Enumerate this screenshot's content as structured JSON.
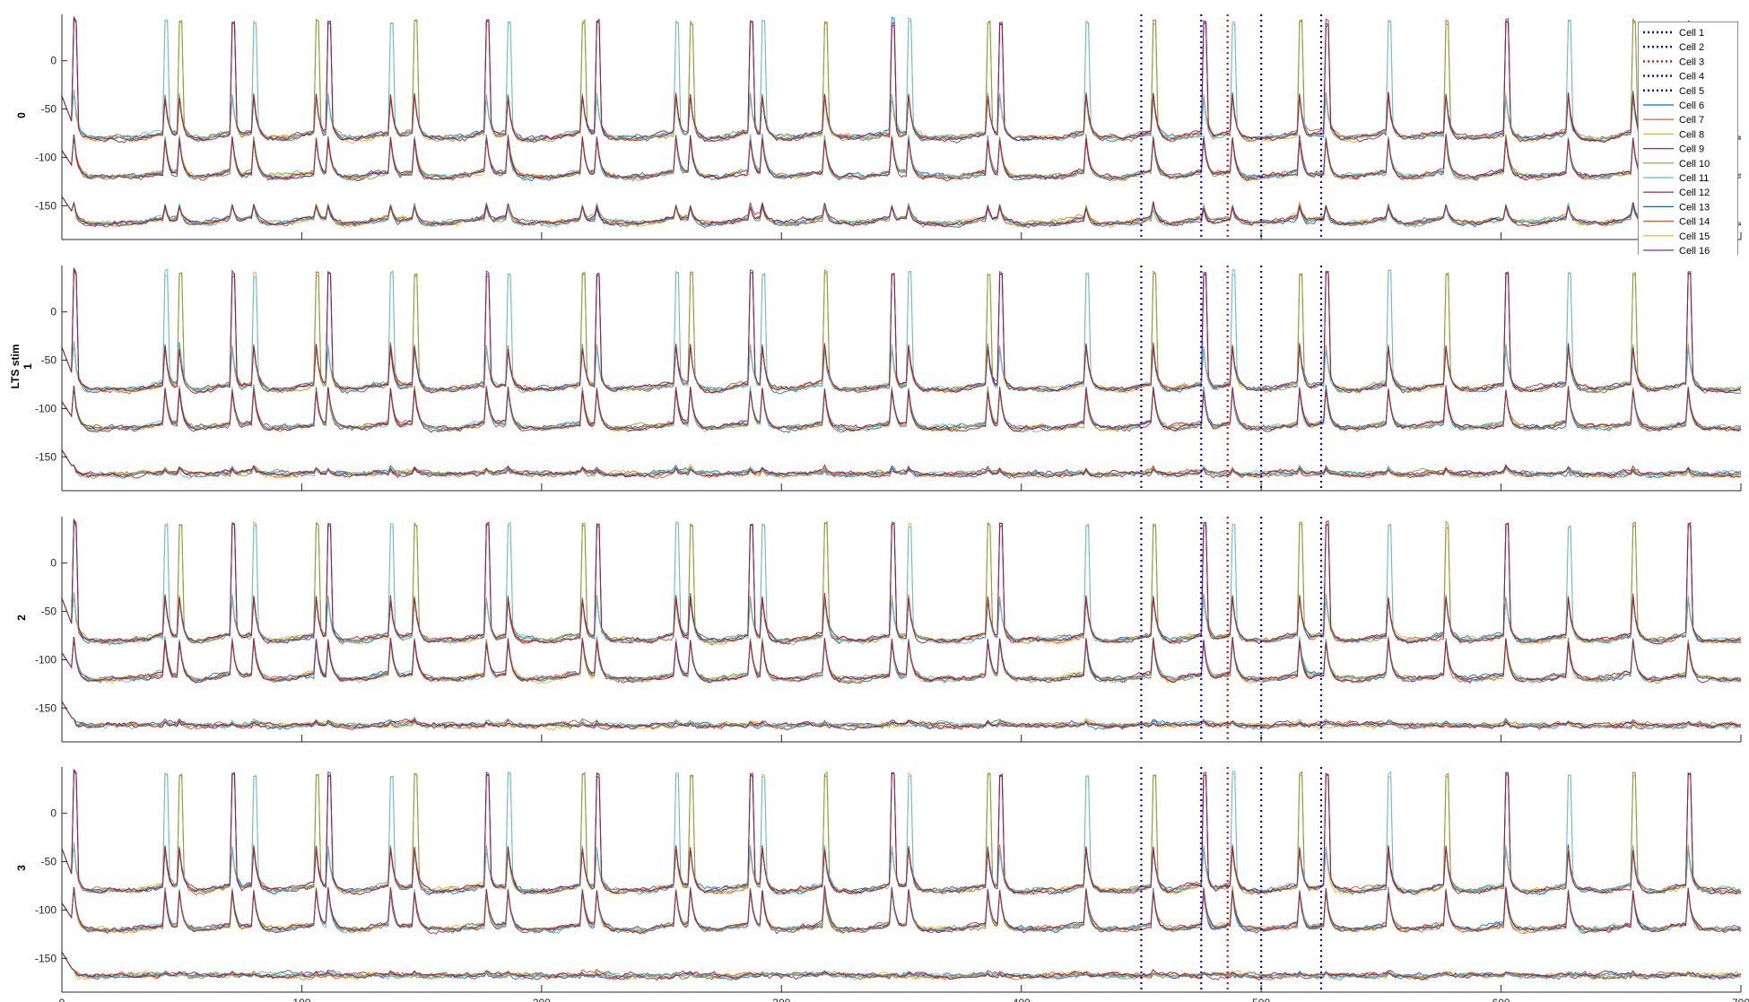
{
  "chart_data": {
    "type": "line",
    "description_axes": "4 stacked panels, shared x axis (time), membrane potential traces offset per population",
    "xlim": [
      0,
      700
    ],
    "ylim": [
      -185,
      48
    ],
    "xticks": [
      0,
      100,
      200,
      300,
      400,
      500,
      600,
      700
    ],
    "yticks": [
      -150,
      -100,
      -50,
      0
    ],
    "panels": [
      {
        "label": "0"
      },
      {
        "label": "LTS stim\n1",
        "label_lines": [
          "LTS stim",
          "1"
        ]
      },
      {
        "label": "2"
      },
      {
        "label": "3"
      }
    ],
    "vertical_markers": [
      {
        "x": 450,
        "color": "#0000ff",
        "name": "Cell 1"
      },
      {
        "x": 475,
        "color": "#0000ff",
        "name": "Cell 2"
      },
      {
        "x": 486,
        "color": "#ff0000",
        "name": "Cell 3"
      },
      {
        "x": 500,
        "color": "#0000ff",
        "name": "Cell 4"
      },
      {
        "x": 525,
        "color": "#0000ff",
        "name": "Cell 5"
      }
    ],
    "trace_bands": [
      {
        "baseline": -80,
        "name": "upper band"
      },
      {
        "baseline": -120,
        "name": "middle band"
      },
      {
        "baseline": -168,
        "name": "lower band"
      }
    ],
    "spike_times": [
      5,
      43,
      49,
      71,
      80,
      106,
      111,
      137,
      147,
      177,
      186,
      217,
      223,
      256,
      262,
      287,
      292,
      318,
      346,
      353,
      386,
      391,
      427,
      455,
      476,
      488,
      516,
      527,
      553,
      577,
      602,
      628,
      655,
      678
    ],
    "legend": {
      "placement": "top-right (panel 0)",
      "entries": [
        {
          "name": "Cell 1",
          "color": "#0000ff",
          "style": "dotted"
        },
        {
          "name": "Cell 2",
          "color": "#0000ff",
          "style": "dotted"
        },
        {
          "name": "Cell 3",
          "color": "#ff0000",
          "style": "dotted"
        },
        {
          "name": "Cell 4",
          "color": "#0000ff",
          "style": "dotted"
        },
        {
          "name": "Cell 5",
          "color": "#0000ff",
          "style": "dotted"
        },
        {
          "name": "Cell 6",
          "color": "#0072bd",
          "style": "solid"
        },
        {
          "name": "Cell 7",
          "color": "#d95319",
          "style": "solid"
        },
        {
          "name": "Cell 8",
          "color": "#edb120",
          "style": "solid"
        },
        {
          "name": "Cell 9",
          "color": "#7e2f8e",
          "style": "solid"
        },
        {
          "name": "Cell 10",
          "color": "#77ac30",
          "style": "solid"
        },
        {
          "name": "Cell 11",
          "color": "#4dbeee",
          "style": "solid"
        },
        {
          "name": "Cell 12",
          "color": "#a2142f",
          "style": "solid"
        },
        {
          "name": "Cell 13",
          "color": "#0072bd",
          "style": "solid"
        },
        {
          "name": "Cell 14",
          "color": "#d95319",
          "style": "solid"
        },
        {
          "name": "Cell 15",
          "color": "#edb120",
          "style": "solid"
        },
        {
          "name": "Cell 16",
          "color": "#7e2f8e",
          "style": "solid"
        }
      ]
    },
    "palette": [
      "#0072bd",
      "#d95319",
      "#edb120",
      "#7e2f8e",
      "#77ac30",
      "#4dbeee",
      "#a2142f"
    ]
  }
}
